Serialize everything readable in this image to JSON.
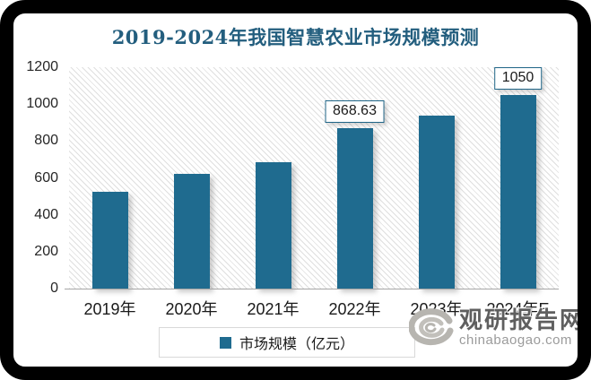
{
  "chart_data": {
    "type": "bar",
    "title": "2019-2024年我国智慧农业市场规模预测",
    "categories": [
      "2019年",
      "2020年",
      "2021年",
      "2022年",
      "2023年",
      "2024年E"
    ],
    "series": [
      {
        "name": "市场规模（亿元）",
        "values": [
          525,
          620,
          685,
          868.63,
          940,
          1050
        ]
      }
    ],
    "shown_data_labels": {
      "2022年": "868.63",
      "2024年E": "1050"
    },
    "ylim": [
      0,
      1200
    ],
    "yticks": [
      0,
      200,
      400,
      600,
      800,
      1000,
      1200
    ],
    "xlabel": "",
    "ylabel": "",
    "grid": false,
    "legend_position": "bottom",
    "plot_background": "diagonal-hatch"
  },
  "legend": {
    "label": "市场规模（亿元）"
  },
  "watermark": {
    "site_name": "观研报告网",
    "site_url": "chinabaogao.com",
    "logo": "swirl-g-logo"
  },
  "colors": {
    "bar": "#1F6B8F",
    "title": "#235E7E",
    "label_box_border": "#1F6587",
    "axis_line": "#A6A6A6",
    "legend_border": "#D9D9D9",
    "frame": "#000000",
    "watermark_text": "#5F5F5F",
    "watermark_url": "#9B9B9B"
  }
}
